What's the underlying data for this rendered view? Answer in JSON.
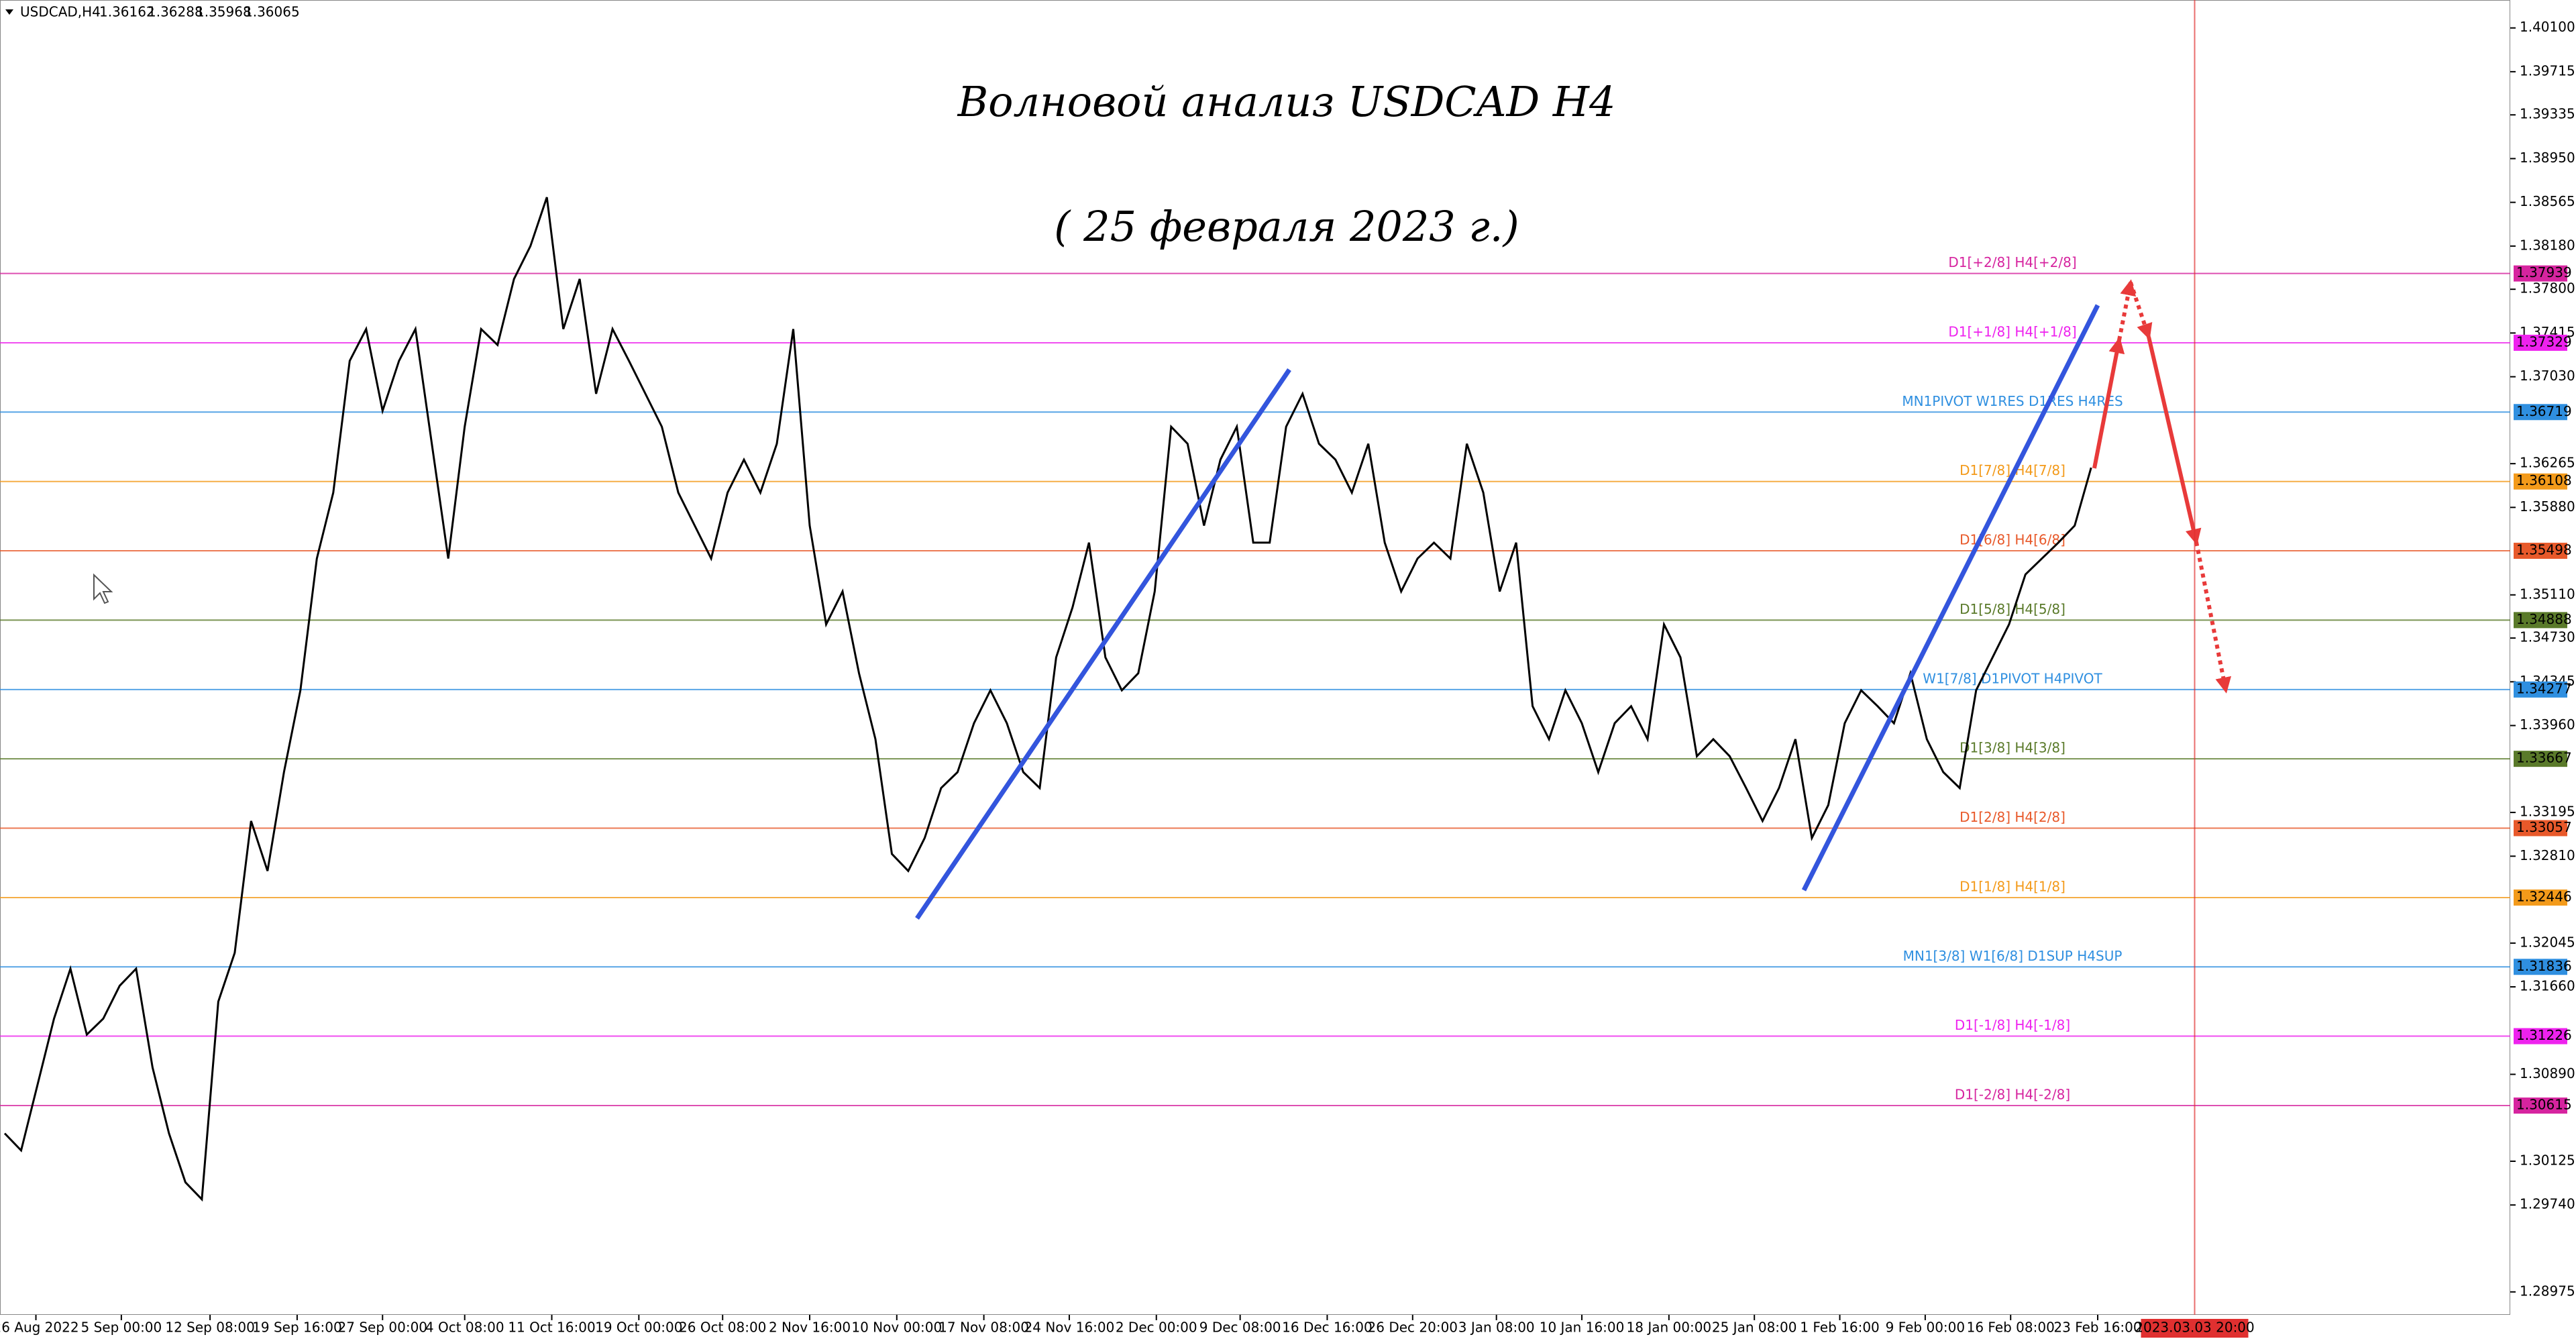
{
  "chart_data": {
    "type": "line",
    "title": "Волновой анализ USDCAD H4",
    "subtitle": "( 25 февраля 2023 г.)",
    "header": {
      "symbol": "USDCAD,H4",
      "ohlc": [
        1.36162,
        1.36288,
        1.35968,
        1.36065
      ]
    },
    "color": "#000000",
    "values": [
      1.3037,
      1.3022,
      1.308,
      1.3138,
      1.3182,
      1.3124,
      1.3138,
      1.3167,
      1.3182,
      1.3095,
      1.3037,
      1.2994,
      1.2979,
      1.3153,
      1.3196,
      1.3312,
      1.3268,
      1.3355,
      1.3427,
      1.3543,
      1.3601,
      1.3717,
      1.3745,
      1.3673,
      1.3717,
      1.3745,
      1.3644,
      1.3543,
      1.3659,
      1.3745,
      1.3731,
      1.3789,
      1.3818,
      1.3861,
      1.3745,
      1.3789,
      1.3688,
      1.3745,
      1.3717,
      1.3688,
      1.3659,
      1.3601,
      1.3572,
      1.3543,
      1.3601,
      1.363,
      1.3601,
      1.3644,
      1.3745,
      1.3572,
      1.3485,
      1.3514,
      1.3442,
      1.3384,
      1.3283,
      1.3268,
      1.3297,
      1.3341,
      1.3355,
      1.3398,
      1.3427,
      1.3398,
      1.3355,
      1.3341,
      1.3456,
      1.35,
      1.3557,
      1.3456,
      1.3427,
      1.3442,
      1.3514,
      1.3659,
      1.3644,
      1.3572,
      1.363,
      1.3659,
      1.3557,
      1.3557,
      1.3659,
      1.3688,
      1.3644,
      1.363,
      1.3601,
      1.3644,
      1.3557,
      1.3514,
      1.3543,
      1.3557,
      1.3543,
      1.3644,
      1.3601,
      1.3514,
      1.3557,
      1.3413,
      1.3384,
      1.3427,
      1.3398,
      1.3355,
      1.3398,
      1.3413,
      1.3384,
      1.3485,
      1.3456,
      1.3369,
      1.3384,
      1.3369,
      1.3341,
      1.3312,
      1.3341,
      1.3384,
      1.3297,
      1.3326,
      1.3398,
      1.3427,
      1.3413,
      1.3398,
      1.3442,
      1.3384,
      1.3355,
      1.3341,
      1.3427,
      1.3456,
      1.3485,
      1.3529,
      1.3543,
      1.3557,
      1.3572,
      1.3623
    ],
    "ylim": [
      1.28773,
      1.40346
    ],
    "yticks": [
      {
        "value": 1.401,
        "label": "1.40100"
      },
      1.39715,
      1.39335,
      {
        "value": 1.3895,
        "label": "1.38950"
      },
      1.38565,
      {
        "value": 1.3818,
        "label": "1.38180"
      },
      {
        "value": 1.378,
        "label": "1.37800"
      },
      1.37415,
      {
        "value": 1.3703,
        "label": "1.37030"
      },
      1.36265,
      {
        "value": 1.3588,
        "label": "1.35880"
      },
      {
        "value": 1.3511,
        "label": "1.35110"
      },
      {
        "value": 1.3473,
        "label": "1.34730"
      },
      1.34345,
      {
        "value": 1.3396,
        "label": "1.33960"
      },
      1.33195,
      {
        "value": 1.3281,
        "label": "1.32810"
      },
      1.32045,
      {
        "value": 1.3166,
        "label": "1.31660"
      },
      {
        "value": 1.3089,
        "label": "1.30890"
      },
      1.30125,
      {
        "value": 1.2974,
        "label": "1.29740"
      },
      1.28975
    ],
    "xticks": [
      {
        "value": 1.9,
        "label": "26 Aug 2022"
      },
      {
        "value": 7.1,
        "label": "5 Sep 00:00"
      },
      {
        "value": 12.5,
        "label": "12 Sep 08:00"
      },
      {
        "value": 17.8,
        "label": "19 Sep 16:00"
      },
      {
        "value": 23,
        "label": "27 Sep 00:00"
      },
      {
        "value": 28,
        "label": "4 Oct 08:00"
      },
      {
        "value": 33.3,
        "label": "11 Oct 16:00"
      },
      {
        "value": 38.6,
        "label": "19 Oct 00:00"
      },
      {
        "value": 43.7,
        "label": "26 Oct 08:00"
      },
      {
        "value": 49,
        "label": "2 Nov 16:00"
      },
      {
        "value": 54.3,
        "label": "10 Nov 00:00"
      },
      {
        "value": 59.6,
        "label": "17 Nov 08:00"
      },
      {
        "value": 64.8,
        "label": "24 Nov 16:00"
      },
      {
        "value": 70.1,
        "label": "2 Dec 00:00"
      },
      {
        "value": 75.2,
        "label": "9 Dec 08:00"
      },
      {
        "value": 80.5,
        "label": "16 Dec 16:00"
      },
      {
        "value": 85.7,
        "label": "26 Dec 20:00"
      },
      {
        "value": 90.8,
        "label": "3 Jan 08:00"
      },
      {
        "value": 96,
        "label": "10 Jan 16:00"
      },
      {
        "value": 101.3,
        "label": "18 Jan 00:00"
      },
      {
        "value": 106.5,
        "label": "25 Jan 08:00"
      },
      {
        "value": 111.7,
        "label": "1 Feb 16:00"
      },
      {
        "value": 116.9,
        "label": "9 Feb 00:00"
      },
      {
        "value": 122.1,
        "label": "16 Feb 08:00"
      },
      {
        "value": 127.4,
        "label": "23 Feb 16:00"
      }
    ],
    "cursor": {
      "value": 133.3,
      "label": "2023.03.03 20:00",
      "color": "#e03030"
    },
    "levels": [
      {
        "value": 1.37939,
        "label": "D1[+2/8] H4[+2/8]",
        "color": "#d6249f"
      },
      {
        "value": 1.37329,
        "label": "D1[+1/8] H4[+1/8]",
        "color": "#ee22ee"
      },
      {
        "value": 1.36719,
        "label": "MN1PIVOT W1RES D1RES H4RES",
        "color": "#2f8fe0"
      },
      {
        "value": 1.36108,
        "label": "D1[7/8] H4[7/8]",
        "color": "#f39a1a"
      },
      {
        "value": 1.35498,
        "label": "D1[6/8] H4[6/8]",
        "color": "#e8592a"
      },
      {
        "value": 1.34888,
        "label": "D1[5/8] H4[5/8]",
        "color": "#5a7a2a"
      },
      {
        "value": 1.34277,
        "label": "W1[7/8] D1PIVOT H4PIVOT",
        "color": "#2f8fe0"
      },
      {
        "value": 1.33667,
        "label": "D1[3/8] H4[3/8]",
        "color": "#5a7a2a"
      },
      {
        "value": 1.33057,
        "label": "D1[2/8] H4[2/8]",
        "color": "#e8592a"
      },
      {
        "value": 1.32446,
        "label": "D1[1/8] H4[1/8]",
        "color": "#f39a1a"
      },
      {
        "value": 1.31836,
        "label": "MN1[3/8] W1[6/8] D1SUP H4SUP",
        "color": "#2f8fe0"
      },
      {
        "value": 1.31226,
        "label": "D1[-1/8] H4[-1/8]",
        "color": "#ee22ee"
      },
      {
        "value": 1.30615,
        "label": "D1[-2/8] H4[-2/8]",
        "color": "#d6249f"
      }
    ]
  }
}
